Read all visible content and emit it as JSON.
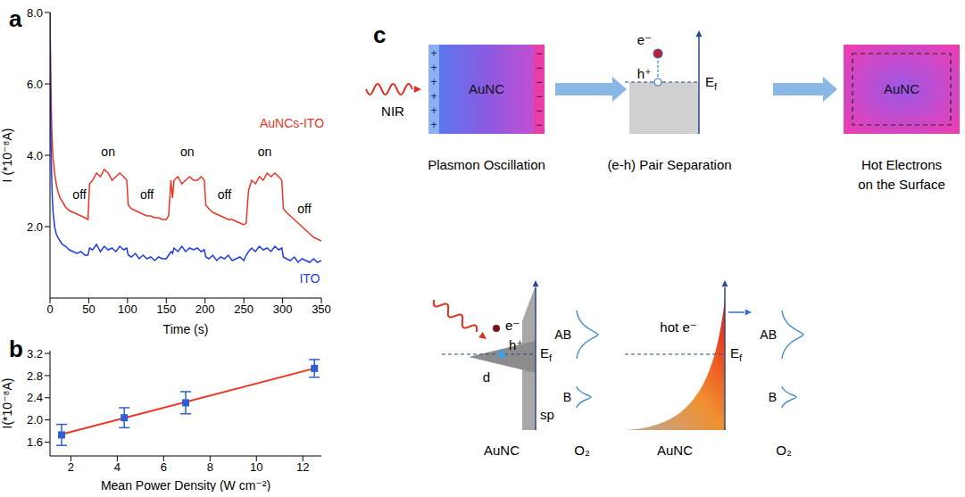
{
  "chart_data": [
    {
      "type": "line",
      "title": "a",
      "x_label": "Time (s)",
      "y_label": "I (*10⁻⁸A)",
      "x": [
        0,
        1,
        2,
        3,
        4,
        6,
        8,
        10,
        13,
        16,
        20,
        25,
        30,
        35,
        40,
        45,
        49,
        51,
        55,
        60,
        65,
        70,
        75,
        80,
        85,
        90,
        95,
        99,
        101,
        105,
        110,
        115,
        120,
        125,
        130,
        135,
        140,
        145,
        150,
        153,
        156,
        158,
        160,
        165,
        170,
        175,
        180,
        185,
        190,
        195,
        199,
        201,
        205,
        210,
        215,
        220,
        225,
        230,
        235,
        240,
        245,
        250,
        253,
        256,
        260,
        265,
        270,
        275,
        280,
        285,
        290,
        295,
        299,
        301,
        305,
        310,
        315,
        320,
        325,
        330,
        335,
        340,
        345,
        350
      ],
      "xlim": [
        0,
        350
      ],
      "xticks": [
        0,
        50,
        100,
        150,
        200,
        250,
        300,
        350
      ],
      "ylim": [
        0,
        8
      ],
      "yticks": [
        {
          "value": 2,
          "label": "2.0"
        },
        {
          "value": 4,
          "label": "4.0"
        },
        {
          "value": 6,
          "label": "6.0"
        },
        {
          "value": 8,
          "label": "8.0"
        }
      ],
      "series": [
        {
          "name": "AuNCs-ITO",
          "color": "#ee3524",
          "name_at": [
            312,
            4.9
          ],
          "values": [
            8,
            6.2,
            5.0,
            4.3,
            3.9,
            3.5,
            3.2,
            3.0,
            2.8,
            2.7,
            2.55,
            2.45,
            2.4,
            2.35,
            2.3,
            2.25,
            2.2,
            3.2,
            3.3,
            3.5,
            3.4,
            3.6,
            3.5,
            3.3,
            3.4,
            3.5,
            3.4,
            3.3,
            2.6,
            2.5,
            2.45,
            2.4,
            2.35,
            2.3,
            2.3,
            2.25,
            2.25,
            2.2,
            2.2,
            2.3,
            3.3,
            2.8,
            3.3,
            3.4,
            3.2,
            3.3,
            3.4,
            3.3,
            3.3,
            3.4,
            3.3,
            2.6,
            2.5,
            2.4,
            2.35,
            2.3,
            2.25,
            2.2,
            2.2,
            2.15,
            2.1,
            2.05,
            2.1,
            3.0,
            3.3,
            3.2,
            3.4,
            3.3,
            3.5,
            3.4,
            3.5,
            3.4,
            3.3,
            2.5,
            2.4,
            2.3,
            2.2,
            2.1,
            2.0,
            1.9,
            1.8,
            1.7,
            1.65,
            1.6
          ]
        },
        {
          "name": "ITO",
          "color": "#1f3be8",
          "name_at": [
            335,
            0.55
          ],
          "values": [
            8,
            4.8,
            3.5,
            2.8,
            2.4,
            2.0,
            1.8,
            1.7,
            1.6,
            1.5,
            1.45,
            1.35,
            1.3,
            1.25,
            1.3,
            1.2,
            1.2,
            1.4,
            1.35,
            1.5,
            1.3,
            1.45,
            1.35,
            1.4,
            1.3,
            1.45,
            1.35,
            1.4,
            1.2,
            1.15,
            1.25,
            1.1,
            1.2,
            1.1,
            1.15,
            1.05,
            1.15,
            1.1,
            1.1,
            1.2,
            1.3,
            1.25,
            1.4,
            1.3,
            1.45,
            1.3,
            1.4,
            1.35,
            1.4,
            1.3,
            1.35,
            1.15,
            1.1,
            1.2,
            1.05,
            1.15,
            1.1,
            1.2,
            1.05,
            1.1,
            1.15,
            1.05,
            1.2,
            1.3,
            1.4,
            1.3,
            1.45,
            1.35,
            1.4,
            1.3,
            1.45,
            1.35,
            1.4,
            1.15,
            1.1,
            1.05,
            1.15,
            1,
            1.1,
            1.05,
            1,
            1.1,
            1,
            1.05
          ]
        }
      ],
      "annotations": [
        {
          "text": "off",
          "x": 38,
          "y": 2.9
        },
        {
          "text": "on",
          "x": 75,
          "y": 4.1
        },
        {
          "text": "off",
          "x": 125,
          "y": 2.9
        },
        {
          "text": "on",
          "x": 177,
          "y": 4.1
        },
        {
          "text": "off",
          "x": 225,
          "y": 2.9
        },
        {
          "text": "on",
          "x": 277,
          "y": 4.1
        },
        {
          "text": "off",
          "x": 328,
          "y": 2.5
        }
      ]
    },
    {
      "type": "scatter",
      "title": "b",
      "x_label": "Mean Power Density (W cm⁻²)",
      "y_label": "I(*10⁻⁸A)",
      "x": [
        1.6,
        4.3,
        6.95,
        12.5
      ],
      "values": [
        1.73,
        2.04,
        2.31,
        2.93
      ],
      "error": [
        0.19,
        0.18,
        0.2,
        0.16
      ],
      "color": "#2f5fd0",
      "marker": "square",
      "fit": {
        "type": "line",
        "x": [
          1.6,
          12.5
        ],
        "values": [
          1.74,
          2.93
        ],
        "color": "#ee3524"
      },
      "xlim": [
        1.1,
        12.8
      ],
      "xticks": [
        2,
        4,
        6,
        8,
        10,
        12
      ],
      "ylim": [
        1.35,
        3.25
      ],
      "yticks": [
        1.6,
        {
          "value": 2,
          "label": "2.0"
        },
        2.4,
        2.8,
        3.2
      ]
    }
  ],
  "diagram": {
    "panel": "c",
    "excitation": "NIR",
    "step1": {
      "label": "AuNC",
      "caption": "Plasmon Oscillation",
      "charges": [
        "+",
        "−"
      ]
    },
    "step2": {
      "electron": "e⁻",
      "hole": "h⁺",
      "fermi": "Ef",
      "caption": "(e-h) Pair Separation"
    },
    "step3": {
      "label": "AuNC",
      "caption": "Hot Electrons on the Surface"
    },
    "dos_left": {
      "electron": "e⁻",
      "hole": "h⁺",
      "d_band": "d",
      "sp_band": "sp",
      "fermi": "Ef",
      "orbitals": [
        "AB",
        "B"
      ],
      "metal": "AuNC",
      "molecule": "O₂"
    },
    "dos_right": {
      "hot_electron": "hot e⁻",
      "fermi": "Ef",
      "orbitals": [
        "AB",
        "B"
      ],
      "metal": "AuNC",
      "molecule": "O₂"
    }
  }
}
